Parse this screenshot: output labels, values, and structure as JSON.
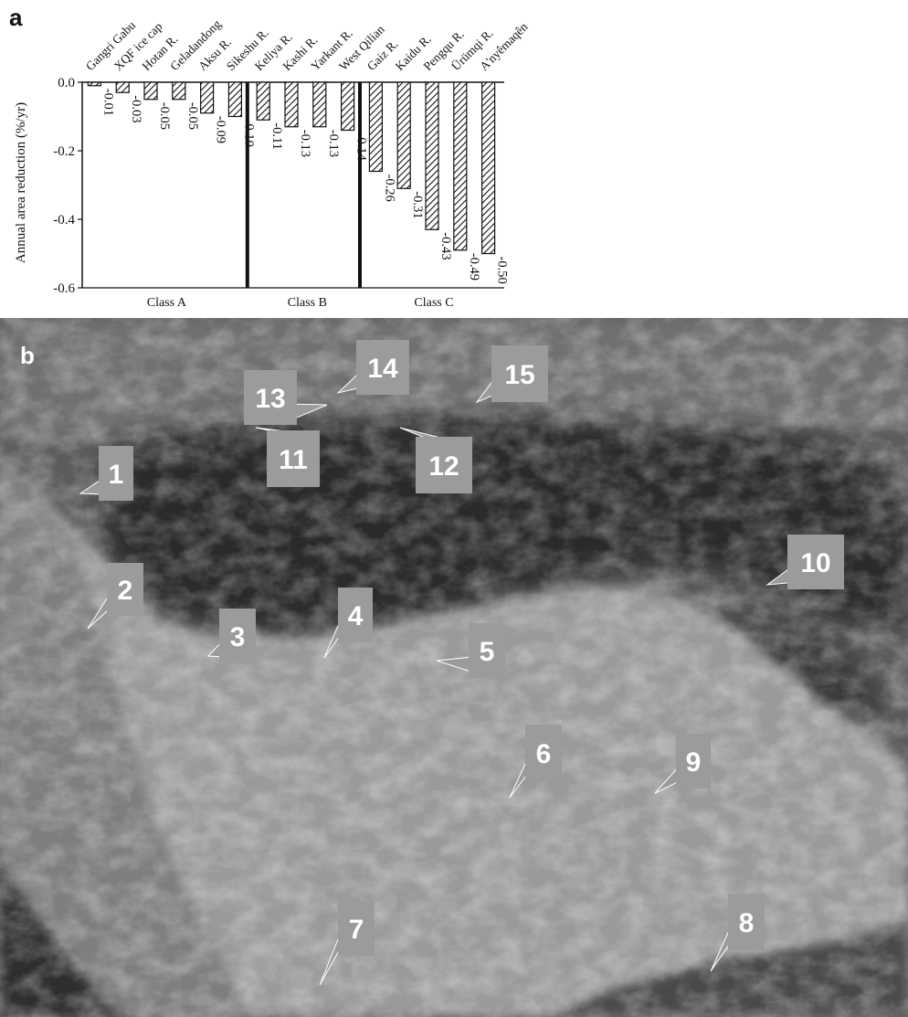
{
  "panel_a": {
    "letter": "a"
  },
  "panel_b": {
    "letter": "b"
  },
  "chart_data": {
    "type": "bar",
    "ylabel": "Annual area reduction (%/yr)",
    "ylim": [
      -0.6,
      0.0
    ],
    "yticks": [
      "0.0",
      "-0.2",
      "-0.4",
      "-0.6"
    ],
    "ytick_values": [
      0.0,
      -0.2,
      -0.4,
      -0.6
    ],
    "categories": [
      "Gangri Gabu",
      "XQF ice cap",
      "Hotan R.",
      "Geladandong",
      "Aksu R.",
      "Sikeshu R.",
      "Keliya R.",
      "Kashi R.",
      "Yarkant R.",
      "West Qilian",
      "Gaiz R.",
      "Kaidu R.",
      "Pengqu R.",
      "Ürümqi R.",
      "A'nyêmaqên"
    ],
    "values": [
      -0.01,
      -0.03,
      -0.05,
      -0.05,
      -0.09,
      -0.1,
      -0.11,
      -0.13,
      -0.13,
      -0.14,
      -0.26,
      -0.31,
      -0.43,
      -0.49,
      -0.5
    ],
    "data_labels": [
      "-0.01",
      "-0.03",
      "-0.05",
      "-0.05",
      "-0.09",
      "-0.10",
      "-0.11",
      "-0.13",
      "-0.13",
      "-0.14",
      "-0.26",
      "-0.31",
      "-0.43",
      "-0.49",
      "-0.50"
    ],
    "groups": [
      {
        "name": "Class A",
        "count": 6
      },
      {
        "name": "Class B",
        "count": 4
      },
      {
        "name": "Class C",
        "count": 5
      }
    ],
    "bar_pattern": "diagonal-hatch"
  },
  "map_markers": [
    "1",
    "2",
    "3",
    "4",
    "5",
    "6",
    "7",
    "8",
    "9",
    "10",
    "11",
    "12",
    "13",
    "14",
    "15"
  ]
}
